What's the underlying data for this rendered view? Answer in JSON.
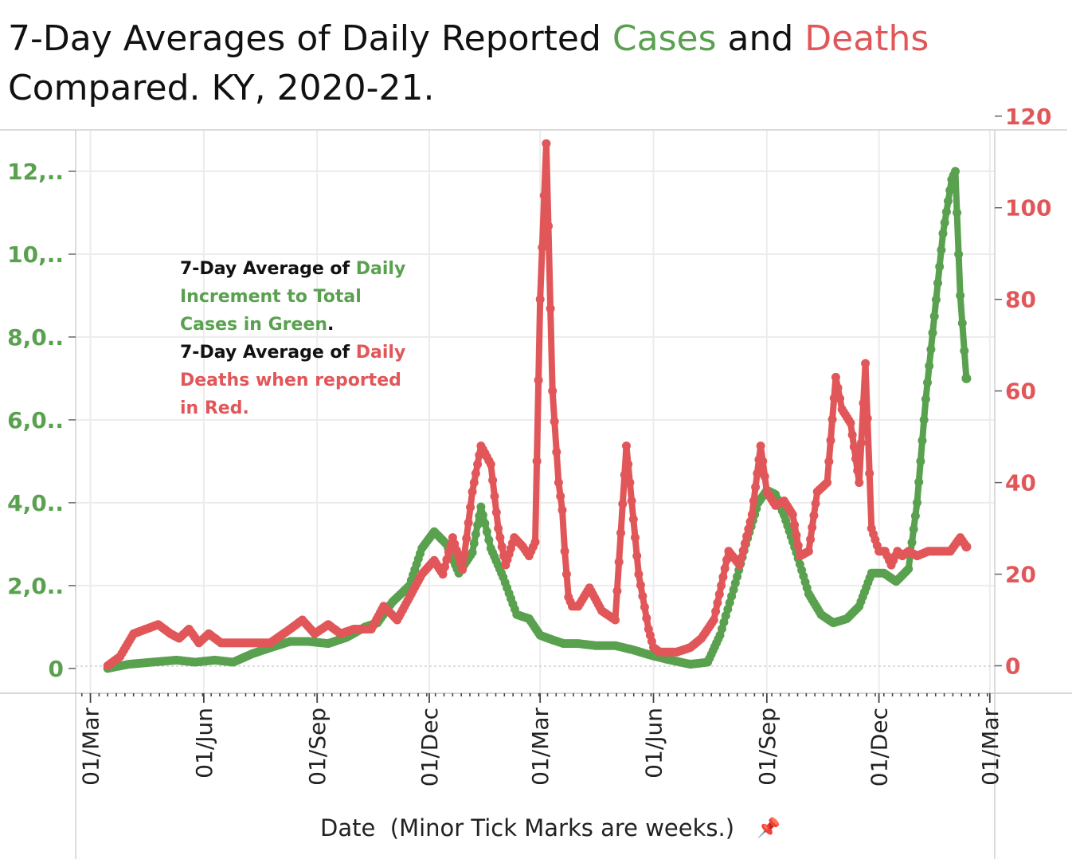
{
  "title": {
    "part1": "7-Day Averages of Daily Reported ",
    "cases_word": "Cases",
    "and_word": " and ",
    "deaths_word": "Deaths",
    "line2": "Compared. KY, 2020-21."
  },
  "annotation": {
    "a1": "7-Day Average of ",
    "a2": "Daily Increment  to Total Cases in Green",
    "a3": ".",
    "b1": "7-Day Average of ",
    "b2": "Daily Deaths when reported in Red."
  },
  "colors": {
    "cases": "#59a14f",
    "deaths": "#e15759",
    "grid": "#ececec",
    "axis": "#bdbdbd"
  },
  "pin_icon": "pin-icon",
  "chart_data": {
    "type": "line",
    "title": "7-Day Averages of Daily Reported Cases and Deaths Compared. KY, 2020-21.",
    "xlabel": "Date  (Minor Tick Marks are weeks.)",
    "x_ticks": [
      "01/Mar",
      "01/Jun",
      "01/Sep",
      "01/Dec",
      "01/Mar",
      "01/Jun",
      "01/Sep",
      "01/Dec",
      "01/Mar"
    ],
    "x_tick_dates": [
      "2020-03-01",
      "2020-06-01",
      "2020-09-01",
      "2020-12-01",
      "2021-03-01",
      "2021-06-01",
      "2021-09-01",
      "2021-12-01",
      "2022-03-01"
    ],
    "x_range": [
      "2020-02-18",
      "2022-03-05"
    ],
    "y_left": {
      "label": "",
      "ticks": [
        0,
        2000,
        4000,
        6000,
        8000,
        10000,
        12000
      ],
      "tick_labels": [
        "0",
        "2,0..",
        "4,0..",
        "6,0..",
        "8,0..",
        "10,..",
        "12,.."
      ],
      "range": [
        -600,
        13000
      ]
    },
    "y_right": {
      "label": "",
      "ticks": [
        0,
        20,
        40,
        60,
        80,
        100,
        120
      ],
      "tick_labels": [
        "0",
        "20",
        "40",
        "60",
        "80",
        "100",
        "120"
      ],
      "range": [
        -6,
        117
      ]
    },
    "grid": true,
    "series": [
      {
        "name": "Cases",
        "axis": "left",
        "x": [
          "2020-03-15",
          "2020-04-01",
          "2020-04-20",
          "2020-05-10",
          "2020-05-25",
          "2020-06-10",
          "2020-06-25",
          "2020-07-10",
          "2020-07-25",
          "2020-08-10",
          "2020-08-25",
          "2020-09-10",
          "2020-09-25",
          "2020-10-10",
          "2020-10-20",
          "2020-11-01",
          "2020-11-15",
          "2020-11-25",
          "2020-12-05",
          "2020-12-15",
          "2020-12-25",
          "2021-01-05",
          "2021-01-12",
          "2021-01-20",
          "2021-01-30",
          "2021-02-10",
          "2021-02-20",
          "2021-03-01",
          "2021-03-10",
          "2021-03-20",
          "2021-04-01",
          "2021-04-15",
          "2021-05-01",
          "2021-05-15",
          "2021-06-01",
          "2021-06-15",
          "2021-07-01",
          "2021-07-15",
          "2021-07-25",
          "2021-08-05",
          "2021-08-15",
          "2021-08-25",
          "2021-09-01",
          "2021-09-08",
          "2021-09-15",
          "2021-09-25",
          "2021-10-05",
          "2021-10-15",
          "2021-10-25",
          "2021-11-05",
          "2021-11-15",
          "2021-11-25",
          "2021-12-05",
          "2021-12-15",
          "2021-12-25",
          "2022-01-01",
          "2022-01-08",
          "2022-01-15",
          "2022-01-22",
          "2022-01-29",
          "2022-02-01",
          "2022-02-05",
          "2022-02-10"
        ],
        "values": [
          0,
          100,
          150,
          200,
          150,
          200,
          150,
          350,
          500,
          650,
          650,
          600,
          750,
          1000,
          1100,
          1600,
          2000,
          2900,
          3300,
          3000,
          2300,
          2800,
          3900,
          2900,
          2200,
          1300,
          1200,
          800,
          700,
          600,
          600,
          550,
          550,
          450,
          300,
          200,
          100,
          150,
          800,
          1900,
          3000,
          4000,
          4300,
          4200,
          3700,
          2800,
          1800,
          1300,
          1100,
          1200,
          1500,
          2300,
          2300,
          2100,
          2400,
          4000,
          6500,
          8500,
          10500,
          11800,
          12000,
          9000,
          7000
        ]
      },
      {
        "name": "Deaths",
        "axis": "right",
        "x": [
          "2020-03-15",
          "2020-03-25",
          "2020-04-05",
          "2020-04-15",
          "2020-04-25",
          "2020-05-05",
          "2020-05-12",
          "2020-05-20",
          "2020-05-28",
          "2020-06-05",
          "2020-06-15",
          "2020-06-25",
          "2020-07-10",
          "2020-07-25",
          "2020-08-10",
          "2020-08-20",
          "2020-08-30",
          "2020-09-10",
          "2020-09-20",
          "2020-10-01",
          "2020-10-15",
          "2020-10-25",
          "2020-11-05",
          "2020-11-15",
          "2020-11-25",
          "2020-12-05",
          "2020-12-12",
          "2020-12-20",
          "2020-12-28",
          "2021-01-05",
          "2021-01-12",
          "2021-01-20",
          "2021-01-26",
          "2021-02-01",
          "2021-02-08",
          "2021-02-15",
          "2021-02-20",
          "2021-02-25",
          "2021-03-01",
          "2021-03-06",
          "2021-03-11",
          "2021-03-16",
          "2021-03-19",
          "2021-03-21",
          "2021-03-24",
          "2021-03-27",
          "2021-04-01",
          "2021-04-10",
          "2021-04-20",
          "2021-05-01",
          "2021-05-10",
          "2021-05-20",
          "2021-05-28",
          "2021-06-01",
          "2021-06-06",
          "2021-06-12",
          "2021-06-20",
          "2021-07-01",
          "2021-07-10",
          "2021-07-20",
          "2021-08-01",
          "2021-08-10",
          "2021-08-20",
          "2021-08-27",
          "2021-09-01",
          "2021-09-08",
          "2021-09-15",
          "2021-09-22",
          "2021-09-28",
          "2021-10-05",
          "2021-10-12",
          "2021-10-20",
          "2021-10-27",
          "2021-11-01",
          "2021-11-08",
          "2021-11-15",
          "2021-11-20",
          "2021-11-25",
          "2021-12-01",
          "2021-12-06",
          "2021-12-11",
          "2021-12-16",
          "2021-12-20",
          "2021-12-25",
          "2022-01-01",
          "2022-01-10",
          "2022-01-20",
          "2022-01-28",
          "2022-02-05",
          "2022-02-10"
        ],
        "values": [
          0,
          2,
          7,
          8,
          9,
          7,
          6,
          8,
          5,
          7,
          5,
          5,
          5,
          5,
          8,
          10,
          7,
          9,
          7,
          8,
          8,
          13,
          10,
          15,
          20,
          23,
          20,
          28,
          21,
          38,
          48,
          44,
          30,
          22,
          28,
          26,
          24,
          27,
          80,
          114,
          60,
          40,
          34,
          25,
          15,
          13,
          13,
          17,
          12,
          10,
          48,
          20,
          8,
          4,
          3,
          3,
          3,
          4,
          6,
          10,
          25,
          22,
          33,
          48,
          38,
          35,
          36,
          33,
          24,
          25,
          38,
          40,
          63,
          56,
          53,
          40,
          66,
          30,
          25,
          25,
          22,
          25,
          24,
          25,
          24,
          25,
          25,
          25,
          28,
          26
        ]
      }
    ]
  }
}
